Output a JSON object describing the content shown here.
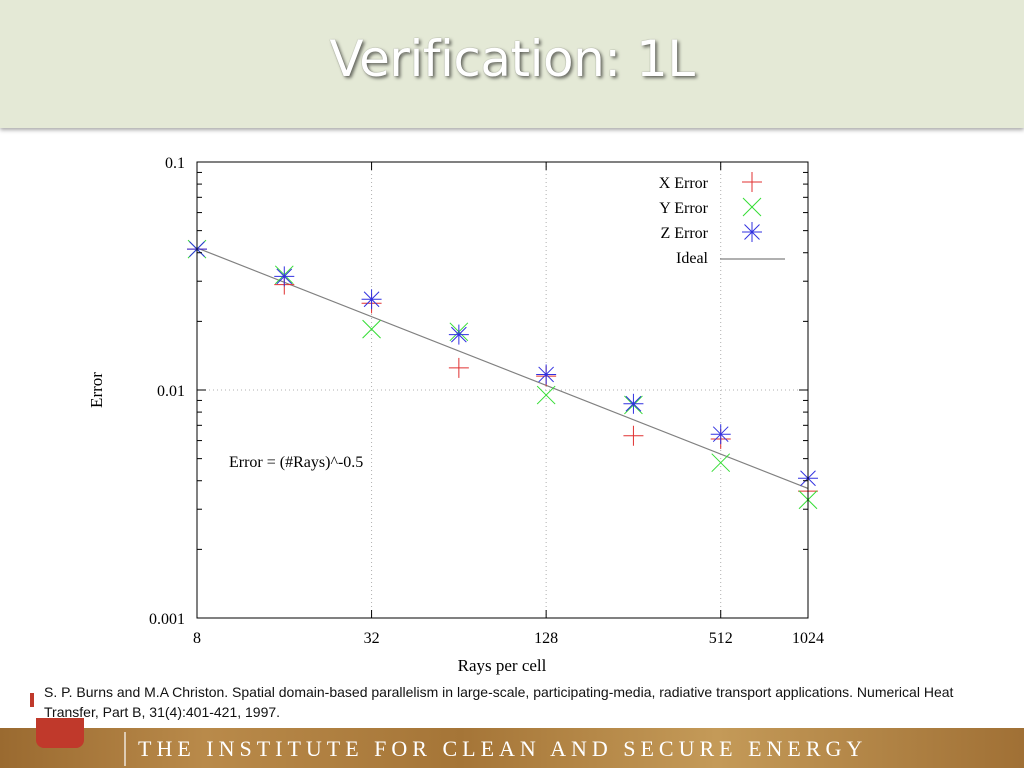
{
  "slide": {
    "title": "Verification: 1L",
    "citation": "S. P. Burns and M.A Christon. Spatial domain-based parallelism in large-scale, participating-media, radiative transport applications. Numerical Heat Transfer, Part B, 31(4):401-421, 1997.",
    "footer_text": "THE INSTITUTE FOR CLEAN AND SECURE ENERGY"
  },
  "chart_data": {
    "type": "scatter",
    "xlabel": "Rays per cell",
    "ylabel": "Error",
    "x_scale": "log2",
    "y_scale": "log10",
    "xlim": [
      8,
      1024
    ],
    "ylim": [
      0.001,
      0.1
    ],
    "x_ticks": [
      8,
      32,
      128,
      512,
      1024
    ],
    "x_tick_labels": [
      "8",
      "32",
      "128",
      "512",
      "1024"
    ],
    "y_ticks": [
      0.001,
      0.01,
      0.1
    ],
    "y_tick_labels": [
      "0.001",
      "0.01",
      "0.1"
    ],
    "grid": true,
    "legend_position": "top-right",
    "annotation": "Error = (#Rays)^-0.5",
    "series": [
      {
        "name": "X Error",
        "marker": "plus",
        "color": "#e03030",
        "x": [
          8,
          16,
          32,
          64,
          128,
          256,
          512,
          1024
        ],
        "y": [
          0.0415,
          0.029,
          0.024,
          0.0125,
          0.0115,
          0.0063,
          0.0061,
          0.0036
        ]
      },
      {
        "name": "Y Error",
        "marker": "cross",
        "color": "#33dd33",
        "x": [
          8,
          16,
          32,
          64,
          128,
          256,
          512,
          1024
        ],
        "y": [
          0.0415,
          0.032,
          0.0185,
          0.018,
          0.0095,
          0.0086,
          0.0048,
          0.0033
        ]
      },
      {
        "name": "Z Error",
        "marker": "star",
        "color": "#3030e0",
        "x": [
          8,
          16,
          32,
          64,
          128,
          256,
          512,
          1024
        ],
        "y": [
          0.0415,
          0.0315,
          0.025,
          0.0175,
          0.0117,
          0.0087,
          0.0064,
          0.0041
        ]
      },
      {
        "name": "Ideal",
        "type": "line",
        "color": "#808080",
        "x": [
          8,
          1024
        ],
        "y": [
          0.042,
          0.0037
        ]
      }
    ]
  }
}
